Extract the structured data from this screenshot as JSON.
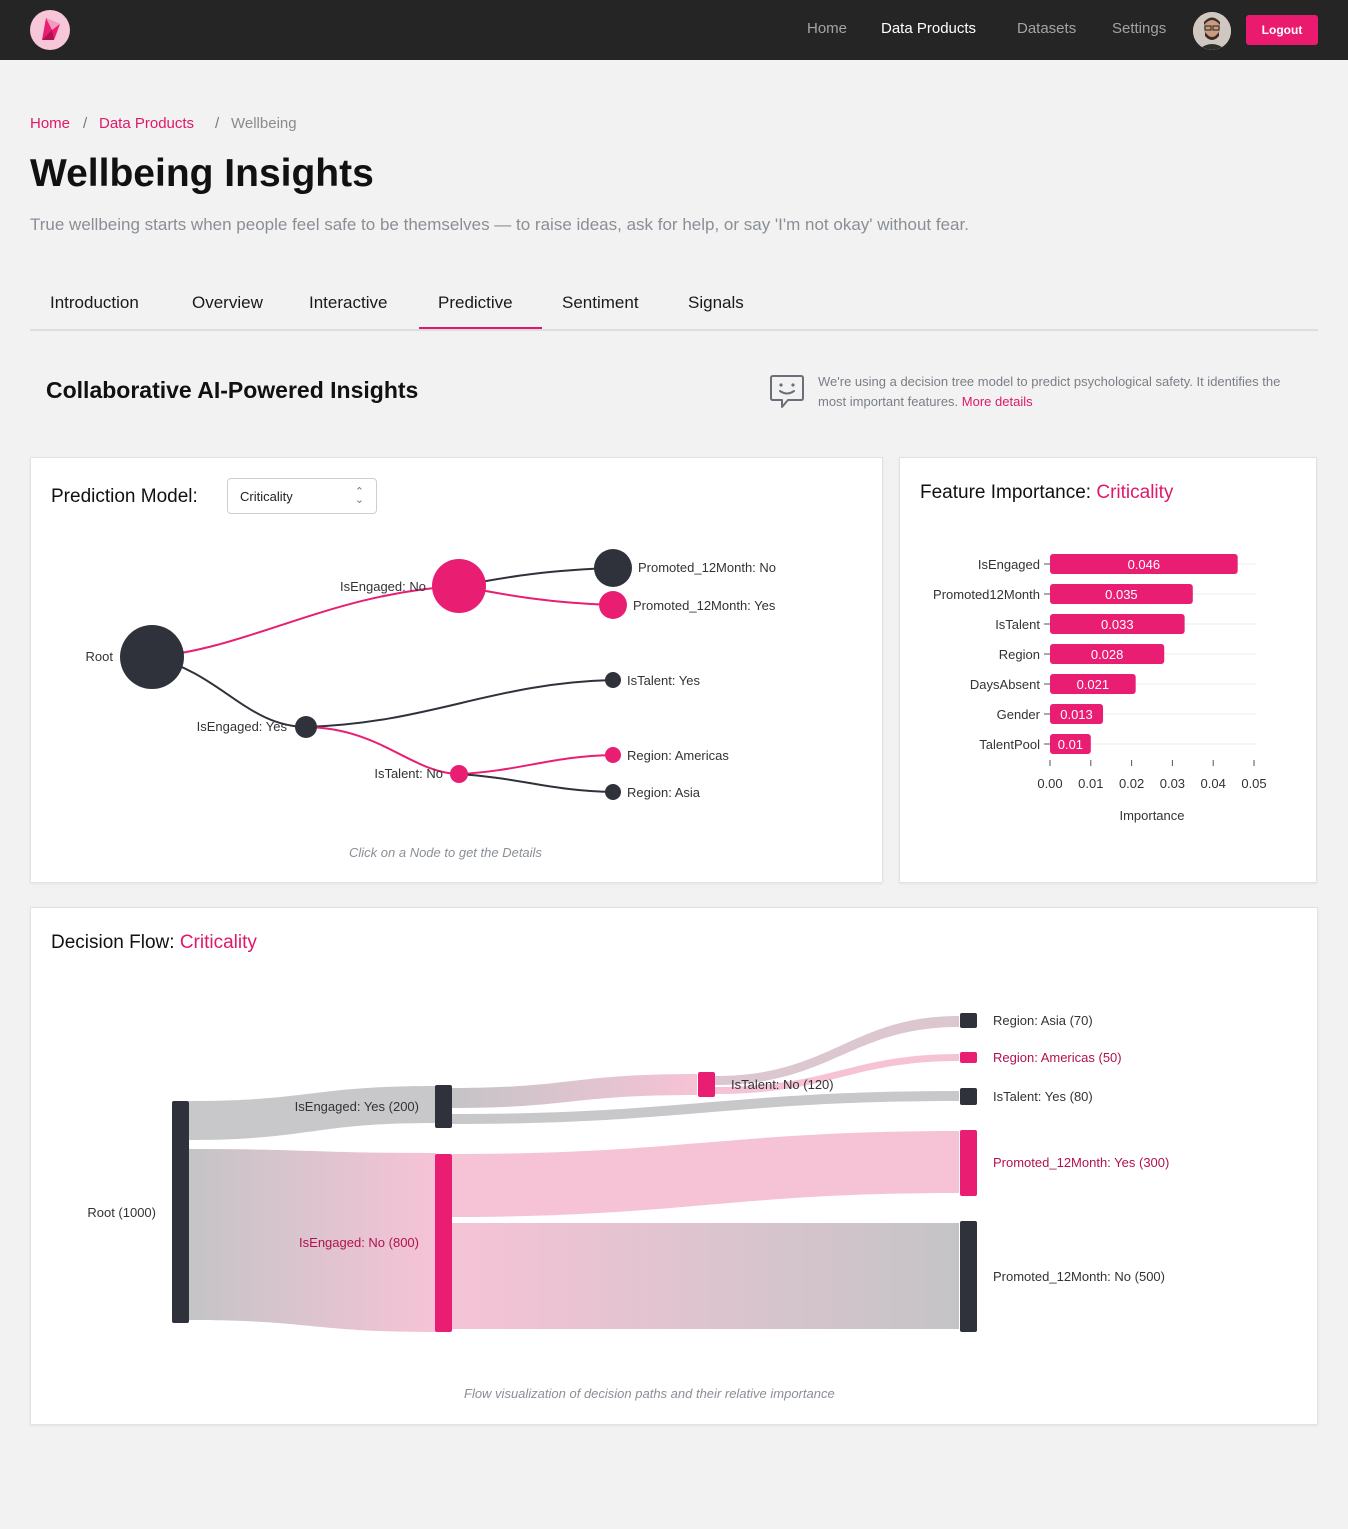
{
  "nav": {
    "links": [
      "Home",
      "Data Products",
      "Datasets",
      "Settings"
    ],
    "active": "Data Products",
    "logout": "Logout"
  },
  "breadcrumb": {
    "items": [
      "Home",
      "Data Products",
      "Wellbeing"
    ],
    "separator": "/"
  },
  "page": {
    "title": "Wellbeing Insights",
    "subtitle": "True wellbeing starts when people feel safe to be themselves — to raise ideas, ask for help, or say 'I'm not okay' without fear."
  },
  "tabs": [
    "Introduction",
    "Overview",
    "Interactive",
    "Predictive",
    "Sentiment",
    "Signals"
  ],
  "active_tab": "Predictive",
  "section": {
    "title": "Collaborative AI-Powered Insights",
    "info_text": "We're using a decision tree model to predict psychological safety. It identifies the most important features.",
    "info_link": "More details"
  },
  "prediction_model": {
    "title": "Prediction Model:",
    "selected": "Criticality",
    "caption": "Click on a Node to get the Details",
    "nodes": {
      "root": "Root",
      "engaged_no": "IsEngaged: No",
      "engaged_yes": "IsEngaged: Yes",
      "promoted_no": "Promoted_12Month: No",
      "promoted_yes": "Promoted_12Month: Yes",
      "talent_yes": "IsTalent: Yes",
      "talent_no": "IsTalent: No",
      "region_americas": "Region: Americas",
      "region_asia": "Region: Asia"
    }
  },
  "feature_importance": {
    "title": "Feature Importance: ",
    "model": "Criticality",
    "xlabel": "Importance"
  },
  "decision_flow": {
    "title": "Decision Flow: ",
    "model": "Criticality",
    "caption": "Flow visualization of decision paths and their relative importance",
    "labels": {
      "root": "Root (1000)",
      "engaged_yes": "IsEngaged: Yes (200)",
      "engaged_no": "IsEngaged: No (800)",
      "talent_no": "IsTalent: No (120)",
      "region_asia": "Region: Asia (70)",
      "region_americas": "Region: Americas (50)",
      "talent_yes": "IsTalent: Yes (80)",
      "promoted_yes": "Promoted_12Month: Yes (300)",
      "promoted_no": "Promoted_12Month: No (500)"
    }
  },
  "colors": {
    "accent": "#e91e73",
    "dark": "#2f323a",
    "gray": "#c7c7c9",
    "light_pink": "#f6c3d6"
  },
  "chart_data": {
    "type": "bar",
    "orientation": "horizontal",
    "categories": [
      "IsEngaged",
      "Promoted12Month",
      "IsTalent",
      "Region",
      "DaysAbsent",
      "Gender",
      "TalentPool"
    ],
    "values": [
      0.046,
      0.035,
      0.033,
      0.028,
      0.021,
      0.013,
      0.01
    ],
    "value_labels": [
      "0.046",
      "0.035",
      "0.033",
      "0.028",
      "0.021",
      "0.013",
      "0.01"
    ],
    "xticks": [
      "0.00",
      "0.01",
      "0.02",
      "0.03",
      "0.04",
      "0.05"
    ],
    "xlim": [
      0,
      0.05
    ],
    "xlabel": "Importance",
    "grid": true
  }
}
